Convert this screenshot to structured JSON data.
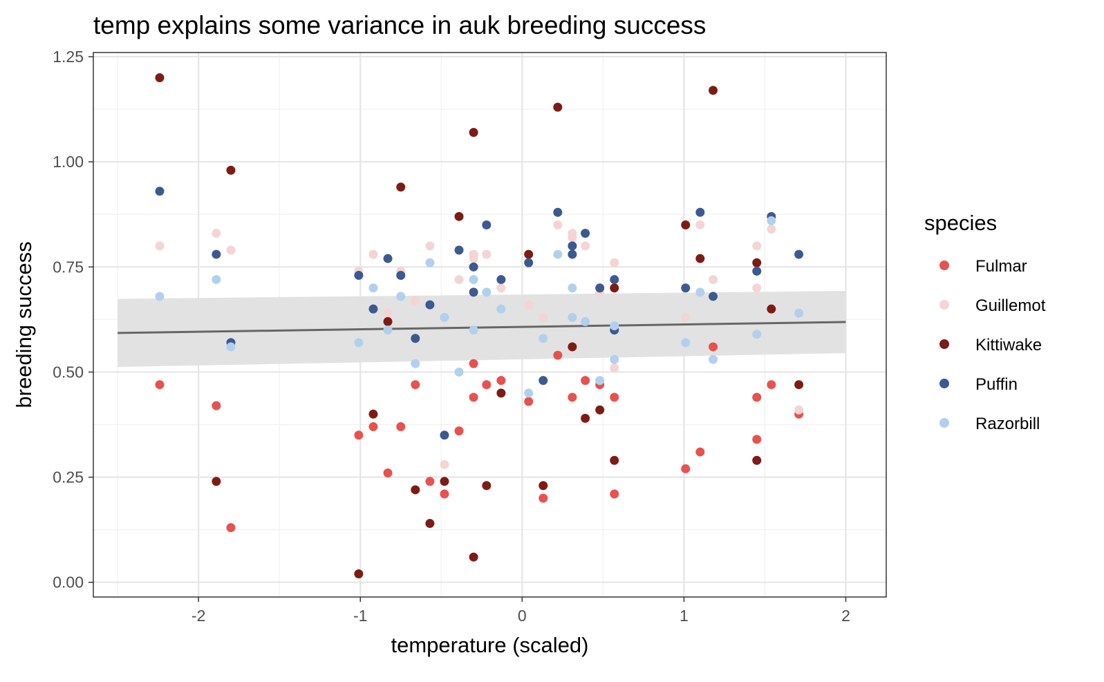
{
  "chart_data": {
    "type": "scatter",
    "title": "temp explains some variance in auk breeding success",
    "xlabel": "temperature (scaled)",
    "ylabel": "breeding success",
    "xlim": [
      -2.65,
      2.25
    ],
    "ylim": [
      -0.035,
      1.26
    ],
    "x_ticks": [
      -2,
      -1,
      0,
      1,
      2
    ],
    "x_tick_labels": [
      "-2",
      "-1",
      "0",
      "1",
      "2"
    ],
    "y_ticks": [
      0,
      0.25,
      0.5,
      0.75,
      1.0,
      1.25
    ],
    "y_tick_labels": [
      "0.00",
      "0.25",
      "0.50",
      "0.75",
      "1.00",
      "1.25"
    ],
    "grid": true,
    "legend": {
      "title": "species",
      "position": "right"
    },
    "colors": {
      "Fulmar": "#e8514d",
      "Guillemot": "#f4d4d4",
      "Kittiwake": "#7d1c14",
      "Puffin": "#3b5a8f",
      "Razorbill": "#b1d0ee",
      "trend_line": "#666666",
      "confidence_band": "#e0e0e0"
    },
    "trend": {
      "x": [
        -2.5,
        2.0
      ],
      "y": [
        0.593,
        0.619
      ],
      "ci_lower": [
        0.512,
        0.545
      ],
      "ci_upper": [
        0.674,
        0.693
      ]
    },
    "series": [
      {
        "name": "Fulmar",
        "x": [
          -2.24,
          -1.89,
          -1.8,
          -1.01,
          -0.92,
          -0.83,
          -0.75,
          -0.66,
          -0.57,
          -0.48,
          -0.39,
          -0.3,
          -0.3,
          -0.22,
          -0.13,
          0.04,
          0.13,
          0.22,
          0.31,
          0.39,
          0.48,
          0.57,
          0.57,
          1.01,
          1.1,
          1.18,
          1.45,
          1.45,
          1.54,
          1.71
        ],
        "y": [
          0.47,
          0.42,
          0.13,
          0.35,
          0.37,
          0.26,
          0.37,
          0.47,
          0.24,
          0.21,
          0.36,
          0.52,
          0.44,
          0.47,
          0.48,
          0.43,
          0.2,
          0.54,
          0.44,
          0.48,
          0.47,
          0.44,
          0.21,
          0.27,
          0.31,
          0.56,
          0.44,
          0.34,
          0.47,
          0.4
        ]
      },
      {
        "name": "Guillemot",
        "x": [
          -2.24,
          -1.89,
          -1.8,
          -1.01,
          -0.92,
          -0.83,
          -0.75,
          -0.66,
          -0.57,
          -0.48,
          -0.39,
          -0.3,
          -0.3,
          -0.22,
          -0.13,
          0.04,
          0.13,
          0.22,
          0.31,
          0.31,
          0.39,
          0.48,
          0.57,
          0.57,
          1.01,
          1.1,
          1.18,
          1.45,
          1.45,
          1.54,
          1.71
        ],
        "y": [
          0.8,
          0.83,
          0.79,
          0.74,
          0.78,
          0.64,
          0.74,
          0.67,
          0.8,
          0.28,
          0.72,
          0.78,
          0.77,
          0.78,
          0.7,
          0.66,
          0.63,
          0.85,
          0.83,
          0.82,
          0.8,
          0.69,
          0.76,
          0.51,
          0.63,
          0.85,
          0.72,
          0.8,
          0.7,
          0.84,
          0.41
        ]
      },
      {
        "name": "Kittiwake",
        "x": [
          -2.24,
          -1.89,
          -1.8,
          -1.01,
          -0.92,
          -0.83,
          -0.75,
          -0.66,
          -0.57,
          -0.48,
          -0.39,
          -0.3,
          -0.3,
          -0.22,
          -0.13,
          0.04,
          0.13,
          0.22,
          0.31,
          0.39,
          0.48,
          0.57,
          0.57,
          1.01,
          1.1,
          1.18,
          1.45,
          1.45,
          1.54,
          1.71
        ],
        "y": [
          1.2,
          0.24,
          0.98,
          0.02,
          0.4,
          0.62,
          0.94,
          0.22,
          0.14,
          0.24,
          0.87,
          1.07,
          0.06,
          0.23,
          0.45,
          0.78,
          0.23,
          1.13,
          0.56,
          0.39,
          0.41,
          0.7,
          0.29,
          0.85,
          0.77,
          1.17,
          0.76,
          0.29,
          0.65,
          0.47
        ]
      },
      {
        "name": "Puffin",
        "x": [
          -2.24,
          -1.89,
          -1.8,
          -1.01,
          -0.92,
          -0.83,
          -0.75,
          -0.66,
          -0.57,
          -0.48,
          -0.39,
          -0.3,
          -0.3,
          -0.22,
          -0.13,
          0.04,
          0.13,
          0.22,
          0.31,
          0.31,
          0.39,
          0.48,
          0.57,
          0.57,
          1.01,
          1.1,
          1.18,
          1.45,
          1.54,
          1.71
        ],
        "y": [
          0.93,
          0.78,
          0.57,
          0.73,
          0.65,
          0.77,
          0.73,
          0.58,
          0.66,
          0.35,
          0.79,
          0.75,
          0.69,
          0.85,
          0.72,
          0.76,
          0.48,
          0.88,
          0.8,
          0.78,
          0.83,
          0.7,
          0.72,
          0.6,
          0.7,
          0.88,
          0.68,
          0.74,
          0.87,
          0.78
        ]
      },
      {
        "name": "Razorbill",
        "x": [
          -2.24,
          -1.89,
          -1.8,
          -1.01,
          -0.92,
          -0.83,
          -0.75,
          -0.66,
          -0.57,
          -0.48,
          -0.39,
          -0.3,
          -0.3,
          -0.22,
          -0.13,
          0.04,
          0.13,
          0.22,
          0.31,
          0.31,
          0.39,
          0.48,
          0.57,
          0.57,
          1.01,
          1.1,
          1.18,
          1.45,
          1.54,
          1.71
        ],
        "y": [
          0.68,
          0.72,
          0.56,
          0.57,
          0.7,
          0.6,
          0.68,
          0.52,
          0.76,
          0.63,
          0.5,
          0.72,
          0.6,
          0.69,
          0.65,
          0.45,
          0.58,
          0.78,
          0.7,
          0.63,
          0.62,
          0.48,
          0.61,
          0.53,
          0.57,
          0.69,
          0.53,
          0.59,
          0.86,
          0.64
        ]
      }
    ]
  }
}
